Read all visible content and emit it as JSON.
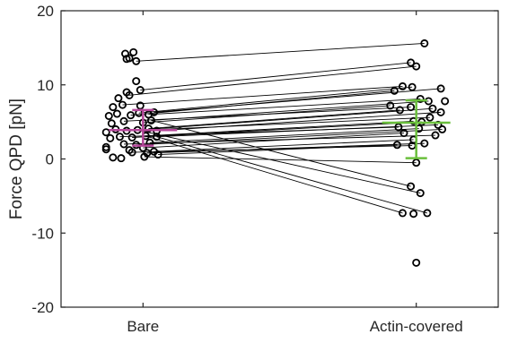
{
  "chart_data": {
    "type": "scatter",
    "title": "",
    "xlabel": "",
    "ylabel": "Force QPD [pN]",
    "ylim": [
      -20,
      20
    ],
    "yticks": [
      -20,
      -10,
      0,
      10,
      20
    ],
    "categories": [
      "Bare",
      "Actin-covered"
    ],
    "grid": false,
    "colors": {
      "bare_summary": "#b5479a",
      "actin_summary": "#6abf3c",
      "points": "#000000",
      "axes": "#262626"
    },
    "bare_points": [
      {
        "x": -0.13,
        "y": 14.2
      },
      {
        "x": -0.07,
        "y": 14.4
      },
      {
        "x": -0.1,
        "y": 13.6
      },
      {
        "x": -0.05,
        "y": 13.2
      },
      {
        "x": -0.12,
        "y": 13.5
      },
      {
        "x": -0.05,
        "y": 10.5
      },
      {
        "x": -0.12,
        "y": 9.0
      },
      {
        "x": -0.02,
        "y": 9.3
      },
      {
        "x": -0.18,
        "y": 8.2
      },
      {
        "x": -0.1,
        "y": 8.6
      },
      {
        "x": -0.22,
        "y": 7.0
      },
      {
        "x": -0.15,
        "y": 7.3
      },
      {
        "x": -0.02,
        "y": 7.2
      },
      {
        "x": -0.25,
        "y": 5.8
      },
      {
        "x": -0.19,
        "y": 6.1
      },
      {
        "x": -0.09,
        "y": 5.9
      },
      {
        "x": -0.03,
        "y": 6.2
      },
      {
        "x": 0.04,
        "y": 6.0
      },
      {
        "x": 0.08,
        "y": 6.3
      },
      {
        "x": -0.23,
        "y": 4.8
      },
      {
        "x": -0.14,
        "y": 5.1
      },
      {
        "x": 0.0,
        "y": 4.9
      },
      {
        "x": 0.06,
        "y": 5.2
      },
      {
        "x": -0.27,
        "y": 3.6
      },
      {
        "x": -0.2,
        "y": 4.0
      },
      {
        "x": -0.12,
        "y": 3.8
      },
      {
        "x": -0.04,
        "y": 3.9
      },
      {
        "x": 0.04,
        "y": 4.1
      },
      {
        "x": 0.1,
        "y": 3.8
      },
      {
        "x": -0.24,
        "y": 2.8
      },
      {
        "x": -0.17,
        "y": 3.0
      },
      {
        "x": -0.08,
        "y": 2.9
      },
      {
        "x": 0.02,
        "y": 3.1
      },
      {
        "x": 0.1,
        "y": 3.0
      },
      {
        "x": -0.27,
        "y": 1.6
      },
      {
        "x": -0.14,
        "y": 2.0
      },
      {
        "x": -0.05,
        "y": 1.9
      },
      {
        "x": 0.05,
        "y": 2.2
      },
      {
        "x": -0.27,
        "y": 1.3
      },
      {
        "x": -0.1,
        "y": 1.2
      },
      {
        "x": 0.0,
        "y": 1.5
      },
      {
        "x": 0.08,
        "y": 1.0
      },
      {
        "x": -0.08,
        "y": 0.9
      },
      {
        "x": 0.03,
        "y": 0.8
      },
      {
        "x": 0.11,
        "y": 0.6
      },
      {
        "x": -0.22,
        "y": 0.2
      },
      {
        "x": -0.16,
        "y": 0.1
      },
      {
        "x": 0.01,
        "y": 0.3
      }
    ],
    "actin_points": [
      {
        "x": 2.06,
        "y": 15.6
      },
      {
        "x": 1.96,
        "y": 13.0
      },
      {
        "x": 2.0,
        "y": 12.5
      },
      {
        "x": 1.9,
        "y": 9.8
      },
      {
        "x": 1.97,
        "y": 9.7
      },
      {
        "x": 2.18,
        "y": 9.5
      },
      {
        "x": 1.84,
        "y": 9.2
      },
      {
        "x": 2.03,
        "y": 8.1
      },
      {
        "x": 2.09,
        "y": 7.8
      },
      {
        "x": 2.21,
        "y": 7.8
      },
      {
        "x": 1.81,
        "y": 7.2
      },
      {
        "x": 1.96,
        "y": 7.0
      },
      {
        "x": 2.12,
        "y": 6.8
      },
      {
        "x": 1.88,
        "y": 6.6
      },
      {
        "x": 2.18,
        "y": 6.3
      },
      {
        "x": 2.1,
        "y": 5.6
      },
      {
        "x": 1.98,
        "y": 5.1
      },
      {
        "x": 2.04,
        "y": 5.0
      },
      {
        "x": 2.16,
        "y": 4.6
      },
      {
        "x": 1.87,
        "y": 4.3
      },
      {
        "x": 2.02,
        "y": 4.1
      },
      {
        "x": 2.19,
        "y": 4.0
      },
      {
        "x": 1.91,
        "y": 3.5
      },
      {
        "x": 2.14,
        "y": 3.2
      },
      {
        "x": 1.98,
        "y": 2.6
      },
      {
        "x": 2.06,
        "y": 2.1
      },
      {
        "x": 1.86,
        "y": 1.9
      },
      {
        "x": 1.97,
        "y": 1.8
      },
      {
        "x": 2.0,
        "y": -0.5
      },
      {
        "x": 1.96,
        "y": -3.7
      },
      {
        "x": 2.03,
        "y": -4.6
      },
      {
        "x": 1.9,
        "y": -7.3
      },
      {
        "x": 1.98,
        "y": -7.4
      },
      {
        "x": 2.08,
        "y": -7.3
      },
      {
        "x": 2.0,
        "y": -14.0
      }
    ],
    "pairs": [
      [
        -0.05,
        13.2,
        2.06,
        15.6
      ],
      [
        -0.02,
        9.3,
        1.96,
        13.0
      ],
      [
        -0.1,
        8.6,
        2.0,
        12.5
      ],
      [
        -0.15,
        7.3,
        1.9,
        9.8
      ],
      [
        -0.03,
        6.2,
        1.97,
        9.7
      ],
      [
        0.08,
        6.3,
        2.18,
        9.5
      ],
      [
        0.04,
        6.0,
        2.03,
        8.1
      ],
      [
        -0.09,
        5.9,
        1.84,
        9.2
      ],
      [
        0.06,
        5.2,
        2.09,
        7.8
      ],
      [
        0.0,
        4.9,
        1.81,
        7.2
      ],
      [
        -0.14,
        5.1,
        1.96,
        7.0
      ],
      [
        -0.04,
        3.9,
        2.12,
        6.8
      ],
      [
        0.04,
        4.1,
        1.88,
        6.6
      ],
      [
        0.1,
        3.8,
        2.18,
        6.3
      ],
      [
        -0.12,
        3.8,
        2.1,
        5.6
      ],
      [
        0.02,
        3.1,
        1.98,
        5.1
      ],
      [
        -0.08,
        2.9,
        2.04,
        5.0
      ],
      [
        0.1,
        3.0,
        2.16,
        4.6
      ],
      [
        -0.17,
        3.0,
        1.87,
        4.3
      ],
      [
        0.05,
        2.2,
        2.02,
        4.1
      ],
      [
        -0.05,
        1.9,
        2.19,
        4.0
      ],
      [
        0.0,
        1.5,
        1.91,
        3.5
      ],
      [
        -0.14,
        2.0,
        2.14,
        3.2
      ],
      [
        0.08,
        1.0,
        1.98,
        2.6
      ],
      [
        0.03,
        0.8,
        2.06,
        2.1
      ],
      [
        0.11,
        0.6,
        1.86,
        1.9
      ],
      [
        -0.08,
        0.9,
        1.97,
        1.8
      ],
      [
        0.01,
        0.3,
        2.0,
        -0.5
      ],
      [
        0.06,
        5.2,
        1.96,
        -3.7
      ],
      [
        -0.04,
        3.9,
        2.03,
        -4.6
      ],
      [
        0.02,
        3.1,
        1.9,
        -7.3
      ],
      [
        0.1,
        3.0,
        2.08,
        -7.3
      ]
    ],
    "summary": [
      {
        "category": "Bare",
        "x": 0,
        "mean": 3.9,
        "sd_low": 1.8,
        "sd_high": 6.6,
        "color": "#b5479a"
      },
      {
        "category": "Actin-covered",
        "x": 2,
        "mean": 4.9,
        "sd_low": 0.1,
        "sd_high": 7.9,
        "color": "#6abf3c"
      }
    ]
  }
}
